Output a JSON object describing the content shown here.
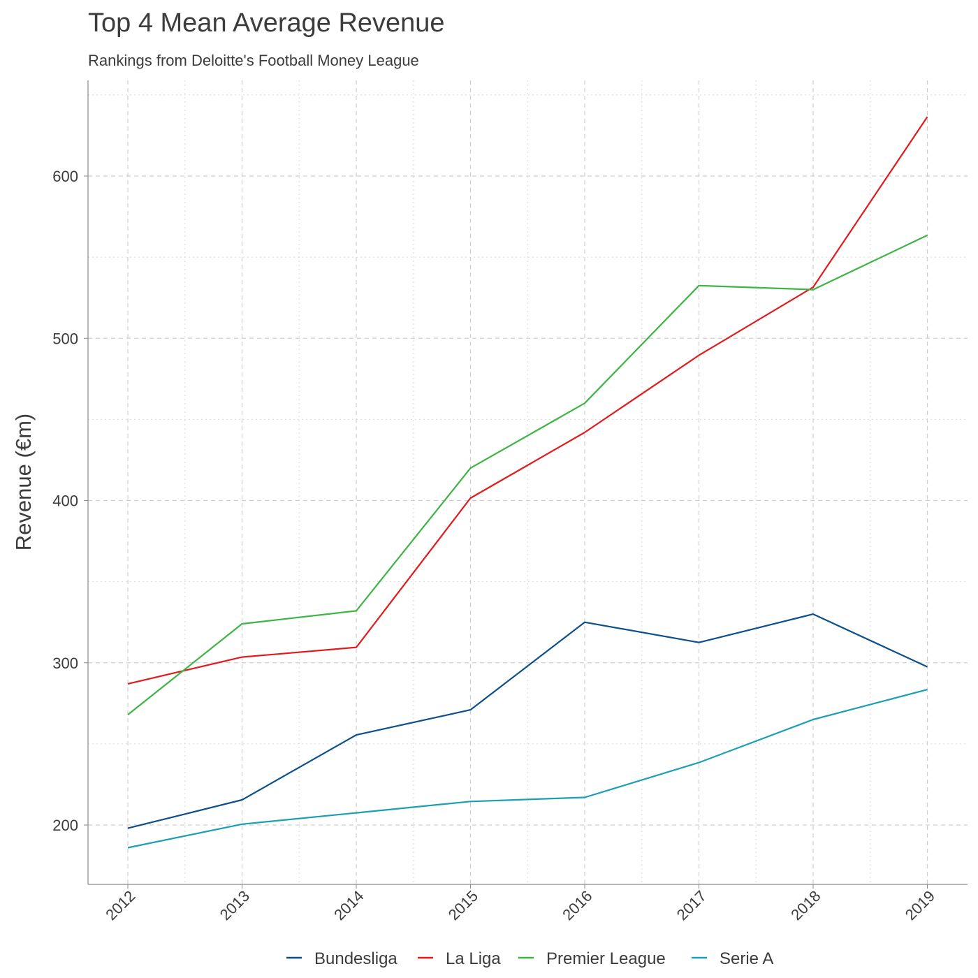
{
  "title": "Top 4 Mean Average Revenue",
  "subtitle": "Rankings from Deloitte's Football Money League",
  "chart_data": {
    "type": "line",
    "title": "Top 4 Mean Average Revenue",
    "subtitle": "Rankings from Deloitte's Football Money League",
    "xlabel": "",
    "ylabel": "Revenue (€m)",
    "x": [
      "2012",
      "2013",
      "2014",
      "2015",
      "2016",
      "2017",
      "2018",
      "2019"
    ],
    "ylim": [
      164,
      659
    ],
    "yticks": [
      200,
      300,
      400,
      500,
      600
    ],
    "grid": true,
    "legend_position": "bottom",
    "series": [
      {
        "name": "Bundesliga",
        "color": "#0b4f8b",
        "values": [
          198,
          215.5,
          255.5,
          271,
          325,
          312.5,
          330,
          297.5
        ]
      },
      {
        "name": "La Liga",
        "color": "#e31a1c",
        "values": [
          287,
          303.5,
          309.5,
          401.5,
          442,
          489.5,
          531.5,
          636.5
        ]
      },
      {
        "name": "Premier League",
        "color": "#3db544",
        "values": [
          268,
          324,
          332,
          420,
          460,
          532.5,
          530,
          563.5
        ]
      },
      {
        "name": "Serie A",
        "color": "#1a9fb5",
        "values": [
          186,
          200.5,
          207.5,
          214.5,
          217,
          238.5,
          265,
          283.5
        ]
      }
    ]
  }
}
